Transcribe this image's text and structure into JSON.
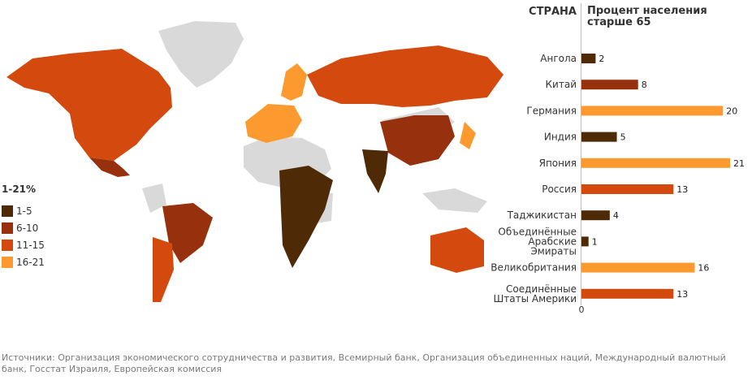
{
  "legend": {
    "title": "1-21%",
    "items": [
      {
        "label": "1-5",
        "color": "#4f2a07"
      },
      {
        "label": "6-10",
        "color": "#97300d"
      },
      {
        "label": "11-15",
        "color": "#d4490e"
      },
      {
        "label": "16-21",
        "color": "#fc9a2f"
      }
    ]
  },
  "map": {
    "no_data_color": "#d9d9d9",
    "regions": [
      {
        "name": "north-america",
        "category": "11-15"
      },
      {
        "name": "mexico",
        "category": "6-10"
      },
      {
        "name": "brazil",
        "category": "6-10"
      },
      {
        "name": "argentina",
        "category": "11-15"
      },
      {
        "name": "russia",
        "category": "11-15"
      },
      {
        "name": "china",
        "category": "6-10"
      },
      {
        "name": "india",
        "category": "1-5"
      },
      {
        "name": "japan",
        "category": "16-21"
      },
      {
        "name": "australia",
        "category": "11-15"
      },
      {
        "name": "central-africa",
        "category": "1-5"
      },
      {
        "name": "scandinavia",
        "category": "16-21"
      },
      {
        "name": "europe",
        "category": "16-21"
      }
    ]
  },
  "chart_data": {
    "type": "bar",
    "orientation": "horizontal",
    "title": "",
    "category_header": "СТРАНА",
    "value_header": "Процент населения старше 65",
    "categories": [
      "Ангола",
      "Китай",
      "Германия",
      "Индия",
      "Япония",
      "Россия",
      "Таджикистан",
      "Объединённые Арабские Эмираты",
      "Великобритания",
      "Соединённые Штаты Америки"
    ],
    "category_lines": [
      [
        "Ангола"
      ],
      [
        "Китай"
      ],
      [
        "Германия"
      ],
      [
        "Индия"
      ],
      [
        "Япония"
      ],
      [
        "Россия"
      ],
      [
        "Таджикистан"
      ],
      [
        "Объединённые",
        "Арабские",
        "Эмираты"
      ],
      [
        "Великобритания"
      ],
      [
        "Соединённые",
        "Штаты Америки"
      ]
    ],
    "values": [
      2,
      8,
      20,
      5,
      21,
      13,
      4,
      1,
      16,
      13
    ],
    "colors": [
      "#4f2a07",
      "#97300d",
      "#fc9a2f",
      "#4f2a07",
      "#fc9a2f",
      "#d4490e",
      "#4f2a07",
      "#4f2a07",
      "#fc9a2f",
      "#d4490e"
    ],
    "xlim": [
      0,
      21
    ],
    "x_tick_labels": [
      "0"
    ],
    "grid": false,
    "legend_position": "left"
  },
  "footer": {
    "sources": "Источники: Организация экономического сотрудничества и развития, Всемирный банк, Организация объединенных наций, Международный валютный банк, Госстат Израиля, Европейская комиссия"
  }
}
